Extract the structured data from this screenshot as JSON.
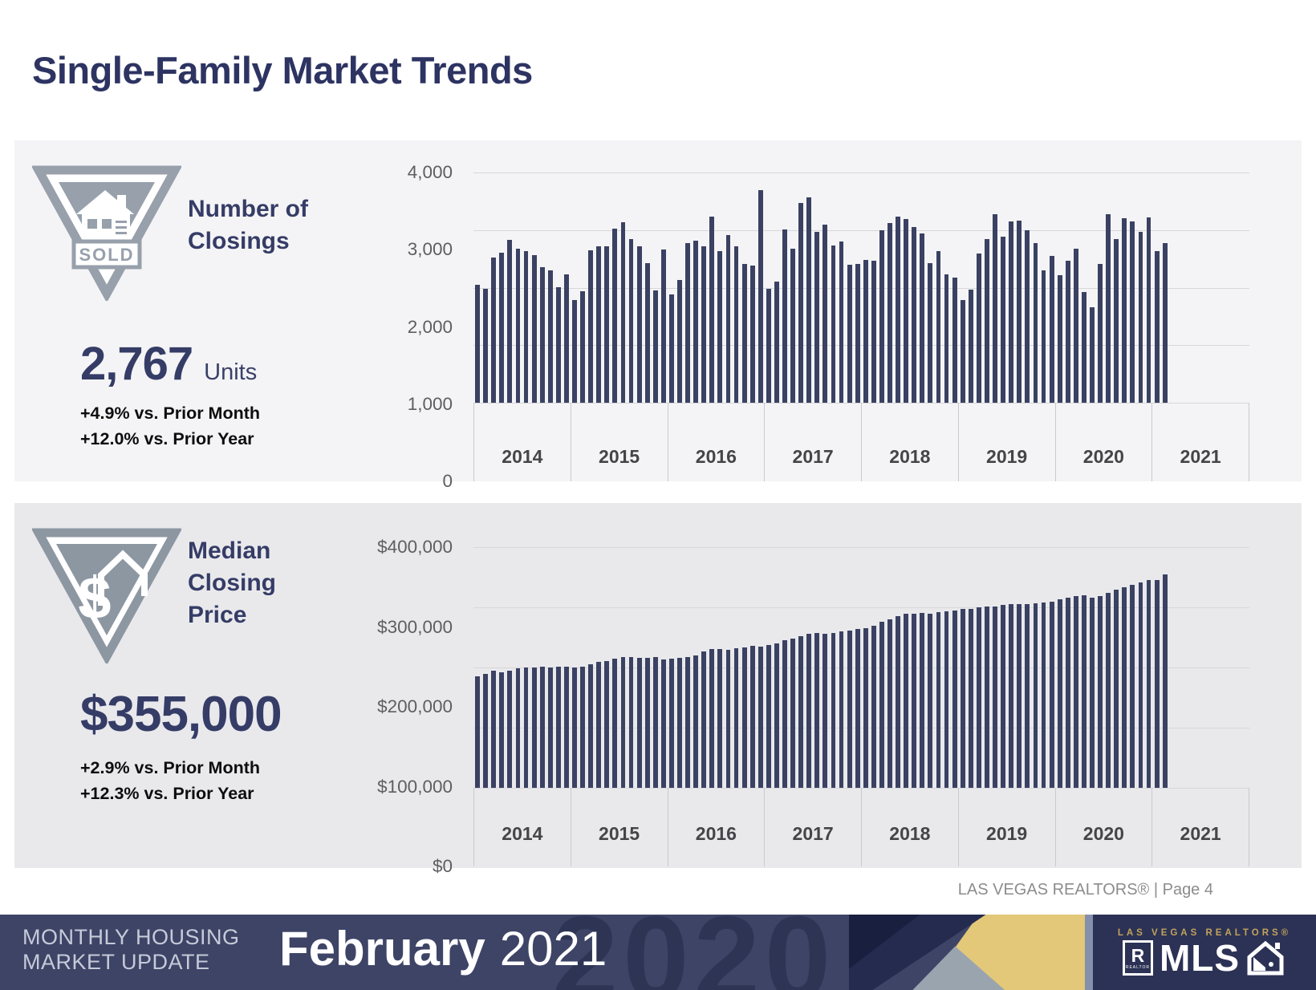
{
  "page": {
    "title": "Single-Family Market Trends",
    "attribution": "LAS VEGAS REALTORS® | Page 4"
  },
  "panels": {
    "closings": {
      "icon": "sold-house-badge",
      "label_line1": "Number of",
      "label_line2": "Closings",
      "value": "2,767",
      "value_suffix": "Units",
      "vs_prior_month": "+4.9% vs. Prior Month",
      "vs_prior_year": "+12.0% vs. Prior Year"
    },
    "median_price": {
      "icon": "dollar-house-badge",
      "label_line1": "Median",
      "label_line2": "Closing",
      "label_line3": "Price",
      "sold_sign_text": "SOLD",
      "value": "$355,000",
      "vs_prior_month": "+2.9% vs. Prior Month",
      "vs_prior_year": "+12.3% vs. Prior Year"
    }
  },
  "footer": {
    "kicker_line1": "MONTHLY HOUSING",
    "kicker_line2": "MARKET UPDATE",
    "month": "February",
    "year": "2021",
    "watermark": "2020",
    "logo_top": "LAS VEGAS REALTORS®",
    "logo_r": "R",
    "logo_r_sub": "REALTOR",
    "logo_mls": "MLS"
  },
  "colors": {
    "bar": "#3a4162",
    "navy_text": "#353c66",
    "panel_top_bg": "#f4f4f6",
    "panel_bottom_bg": "#e9e9ec",
    "banner_bg": "#3e4466",
    "logo_box_bg": "#2c3255",
    "gold": "#e2c878",
    "badge_gray": "#97a0ab"
  },
  "chart_data": [
    {
      "type": "bar",
      "title": "Number of Closings (monthly)",
      "x_years": [
        "2014",
        "2015",
        "2016",
        "2017",
        "2018",
        "2019",
        "2020",
        "2021"
      ],
      "first_month": "2014-01",
      "last_month": "2021-02",
      "ylim": [
        0,
        4000
      ],
      "ytick_labels": [
        "4,000",
        "3,000",
        "2,000",
        "1,000",
        "0"
      ],
      "grid": true,
      "legend": "none",
      "values": [
        2050,
        1980,
        2520,
        2600,
        2830,
        2670,
        2640,
        2560,
        2350,
        2300,
        2010,
        2230,
        1790,
        1940,
        2650,
        2720,
        2720,
        3020,
        3140,
        2840,
        2720,
        2430,
        1950,
        2660,
        1880,
        2130,
        2780,
        2820,
        2720,
        3230,
        2630,
        2910,
        2715,
        2410,
        2390,
        3690,
        1980,
        2100,
        3010,
        2680,
        3470,
        3570,
        2970,
        3100,
        2735,
        2795,
        2400,
        2410,
        2480,
        2470,
        3000,
        3120,
        3240,
        3190,
        3050,
        2940,
        2420,
        2640,
        2230,
        2180,
        1780,
        1970,
        2590,
        2840,
        3270,
        2880,
        3150,
        3160,
        3000,
        2770,
        2300,
        2550,
        2210,
        2470,
        2680,
        1920,
        1660,
        2410,
        3275,
        2845,
        3205,
        3155,
        2965,
        3220,
        2638,
        2767
      ]
    },
    {
      "type": "bar",
      "title": "Median Closing Price (monthly, $)",
      "x_years": [
        "2014",
        "2015",
        "2016",
        "2017",
        "2018",
        "2019",
        "2020",
        "2021"
      ],
      "first_month": "2014-01",
      "last_month": "2021-02",
      "ylim": [
        0,
        400000
      ],
      "ytick_labels": [
        "$400,000",
        "$300,000",
        "$200,000",
        "$100,000",
        "$0"
      ],
      "grid": true,
      "legend": "none",
      "values": [
        185000,
        190000,
        195000,
        192000,
        195000,
        199000,
        200000,
        200000,
        202000,
        200000,
        201000,
        202000,
        200000,
        202000,
        206000,
        209000,
        211000,
        215000,
        218000,
        217000,
        216000,
        216000,
        217000,
        214000,
        215000,
        216000,
        217000,
        220000,
        227000,
        231000,
        231000,
        230000,
        232000,
        233000,
        236000,
        235000,
        238000,
        240000,
        245000,
        248000,
        252000,
        256000,
        258000,
        256000,
        258000,
        260000,
        262000,
        264000,
        266000,
        270000,
        276000,
        280000,
        285000,
        290000,
        290000,
        291000,
        290000,
        292000,
        293000,
        295000,
        297000,
        298000,
        300000,
        302000,
        302000,
        304000,
        305000,
        306000,
        305000,
        307000,
        308000,
        310000,
        313000,
        316000,
        319000,
        320000,
        316000,
        319000,
        324000,
        330000,
        334000,
        338000,
        342000,
        345000,
        345000,
        355000
      ]
    }
  ]
}
